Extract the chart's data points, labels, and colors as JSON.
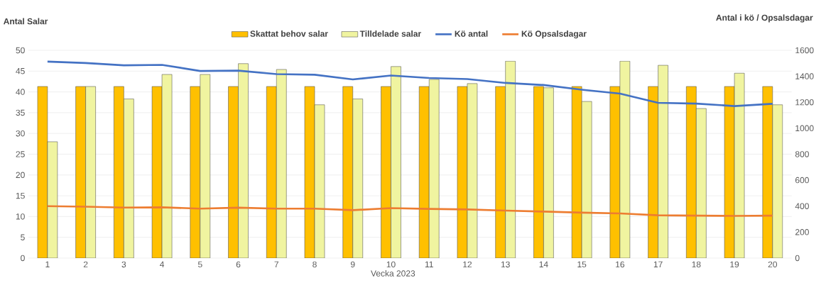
{
  "chart_data": {
    "type": "bar",
    "xlabel": "Vecka 2023",
    "ylabel": "Antal Salar",
    "y2label": "Antal i kö / Opsalsdagar",
    "categories": [
      "1",
      "2",
      "3",
      "4",
      "5",
      "6",
      "7",
      "8",
      "9",
      "10",
      "11",
      "12",
      "13",
      "14",
      "15",
      "16",
      "17",
      "18",
      "19",
      "20"
    ],
    "series": [
      {
        "name": "Skattat behov salar",
        "color": "#ffc000",
        "values": [
          41.3,
          41.3,
          41.3,
          41.3,
          41.3,
          41.3,
          41.3,
          41.3,
          41.3,
          41.3,
          41.3,
          41.3,
          41.3,
          41.3,
          41.3,
          41.3,
          41.3,
          41.3,
          41.3,
          41.3
        ]
      },
      {
        "name": "Tilldelade salar",
        "color": "#f0f4a0",
        "values": [
          28.0,
          41.3,
          38.3,
          44.2,
          44.2,
          46.8,
          45.4,
          36.9,
          38.3,
          46.1,
          43.0,
          42.0,
          47.4,
          41.0,
          37.7,
          47.4,
          46.4,
          36.0,
          44.5,
          36.9
        ]
      },
      {
        "name": "Kö antal",
        "type": "line",
        "axis": "y2",
        "color": "#4472c4",
        "values": [
          1513,
          1502,
          1485,
          1488,
          1441,
          1444,
          1417,
          1412,
          1376,
          1406,
          1387,
          1379,
          1349,
          1333,
          1297,
          1267,
          1196,
          1190,
          1171,
          1188
        ]
      },
      {
        "name": "Kö Opsalsdagar",
        "type": "line",
        "axis": "y2",
        "color": "#ed7d31",
        "values": [
          400,
          396,
          389,
          391,
          381,
          388,
          381,
          381,
          369,
          385,
          379,
          375,
          366,
          358,
          350,
          344,
          330,
          327,
          325,
          327
        ]
      }
    ],
    "ylim": [
      0,
      50
    ],
    "yticks": [
      0,
      5,
      10,
      15,
      20,
      25,
      30,
      35,
      40,
      45,
      50
    ],
    "y2lim": [
      0,
      1600
    ],
    "y2ticks": [
      0,
      200,
      400,
      600,
      800,
      1000,
      1200,
      1400,
      1600
    ],
    "grid": "y",
    "legend": "top"
  }
}
